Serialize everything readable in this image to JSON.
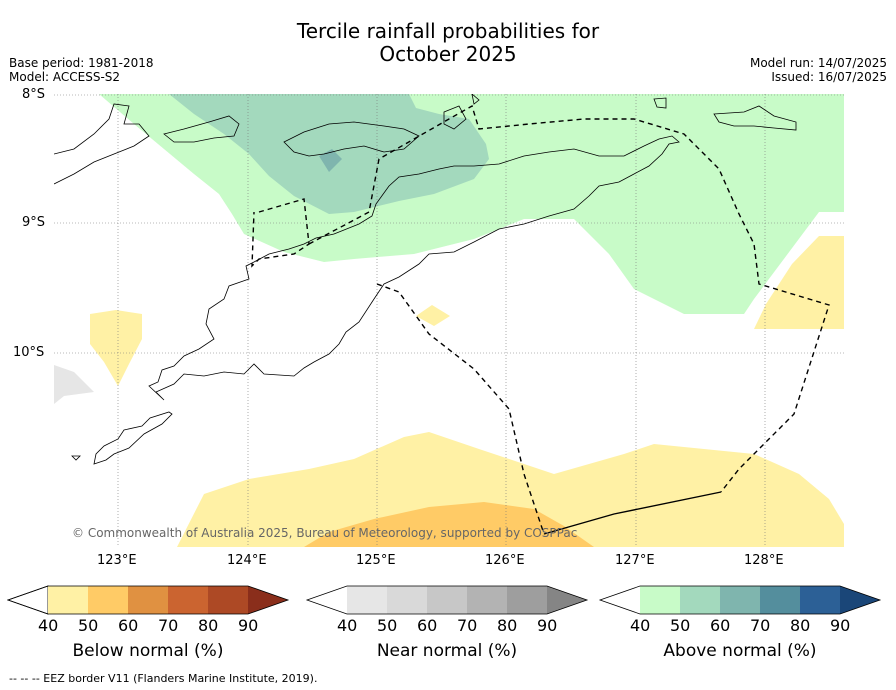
{
  "title_line1": "Tercile rainfall probabilities for",
  "title_line2": "October 2025",
  "meta_left": [
    "Base period: 1981-2018",
    "Model: ACCESS-S2"
  ],
  "meta_right": [
    "Model run: 14/07/2025",
    "Issued: 16/07/2025"
  ],
  "lat_labels": [
    "8°S",
    "9°S",
    "10°S"
  ],
  "lon_labels": [
    "123°E",
    "124°E",
    "125°E",
    "126°E",
    "127°E",
    "128°E"
  ],
  "copyright": "© Commonwealth of Australia 2025, Bureau of Meteorology, supported by COSPPac",
  "colorbars": [
    {
      "label": "Below normal (%)",
      "ticks": [
        "40",
        "50",
        "60",
        "70",
        "80",
        "90"
      ],
      "colors": [
        "#fff1a5",
        "#ffcb66",
        "#e09141",
        "#cb6430",
        "#ad4925",
        "#8a2e1b"
      ]
    },
    {
      "label": "Near normal (%)",
      "ticks": [
        "40",
        "50",
        "60",
        "70",
        "80",
        "90"
      ],
      "colors": [
        "#e6e6e6",
        "#d9d9d9",
        "#c7c7c7",
        "#b3b3b3",
        "#9e9e9e",
        "#858585"
      ]
    },
    {
      "label": "Above normal (%)",
      "ticks": [
        "40",
        "50",
        "60",
        "70",
        "80",
        "90"
      ],
      "colors": [
        "#c8fbc8",
        "#a3d9bd",
        "#7fb5ae",
        "#548e9d",
        "#2c6096",
        "#1a4678"
      ]
    }
  ],
  "footer": "-- -- -- EEZ border V11 (Flanders Marine Institute, 2019)."
}
